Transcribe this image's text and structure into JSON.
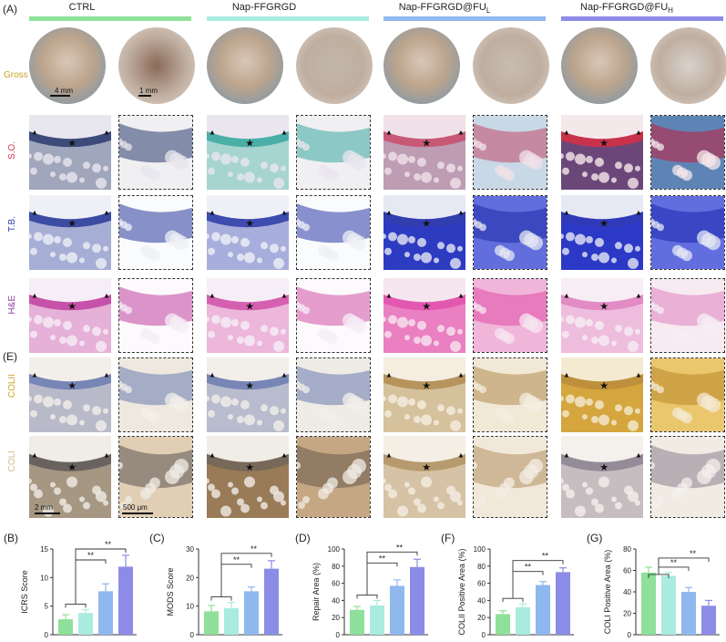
{
  "panels": {
    "A": "(A)",
    "E": "(E)",
    "B": "(B)",
    "C": "(C)",
    "D": "(D)",
    "F": "(F)",
    "G": "(G)"
  },
  "groups": [
    {
      "name": "CTRL",
      "color": "#8fe09a"
    },
    {
      "name": "Nap-FFGRGD",
      "color": "#a9ebdf"
    },
    {
      "name": "Nap-FFGRGD@FU",
      "sub": "L",
      "color": "#8fb8ee"
    },
    {
      "name": "Nap-FFGRGD@FU",
      "sub": "H",
      "color": "#8c8ce6"
    }
  ],
  "rows": {
    "gross": {
      "label": "Gross",
      "color": "#c9a227"
    },
    "so": {
      "label": "S.O.",
      "color": "#d12f52"
    },
    "tb": {
      "label": "T.B.",
      "color": "#2d3fa8"
    },
    "he": {
      "label": "H&E",
      "color": "#8a3fa0"
    },
    "colii": {
      "label": "COLII",
      "color": "#c9a227"
    },
    "coli": {
      "label": "COLI",
      "color": "#d4b88a"
    }
  },
  "scalebars": {
    "gross_left": "4 mm",
    "gross_right": "1 mm",
    "histo_left": "2 mm",
    "histo_right": "500 μm"
  },
  "significance": "**",
  "chart_data": [
    {
      "type": "bar",
      "panel": "(B)",
      "ylabel": "ICRS Score",
      "ylim": [
        0,
        15
      ],
      "yticks": [
        0,
        5,
        10,
        15
      ],
      "values": [
        2.7,
        3.8,
        7.6,
        11.9
      ],
      "errors": [
        0.8,
        0.6,
        1.3,
        2.0
      ]
    },
    {
      "type": "bar",
      "panel": "(C)",
      "ylabel": "MODS Score",
      "ylim": [
        0,
        30
      ],
      "yticks": [
        0,
        10,
        20,
        30
      ],
      "values": [
        8.2,
        9.3,
        15.2,
        23.1
      ],
      "errors": [
        2.0,
        2.0,
        1.5,
        2.8
      ]
    },
    {
      "type": "bar",
      "panel": "(D)",
      "ylabel": "Repair Area (%)",
      "ylim": [
        0,
        100
      ],
      "yticks": [
        0,
        20,
        40,
        60,
        80,
        100
      ],
      "values": [
        29,
        34,
        57,
        79
      ],
      "errors": [
        4,
        6,
        7,
        9
      ]
    },
    {
      "type": "bar",
      "panel": "(F)",
      "ylabel": "COLII Positive Area (%)",
      "ylim": [
        0,
        100
      ],
      "yticks": [
        0,
        20,
        40,
        60,
        80,
        100
      ],
      "values": [
        24,
        32,
        58,
        73
      ],
      "errors": [
        4,
        4,
        4,
        5
      ]
    },
    {
      "type": "bar",
      "panel": "(G)",
      "ylabel": "COLI Positive Area (%)",
      "ylim": [
        0,
        80
      ],
      "yticks": [
        0,
        20,
        40,
        60,
        80
      ],
      "values": [
        58,
        55,
        40,
        27
      ],
      "errors": [
        5,
        3,
        4,
        5
      ]
    }
  ]
}
